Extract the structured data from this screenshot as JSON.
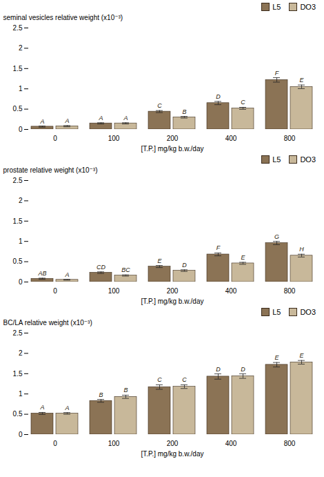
{
  "chart_data": [
    {
      "type": "bar",
      "x_label": "[T.P.] mg/kg b.w./day",
      "y_label": "seminal vesicles relative weight (x10⁻³)",
      "categories": [
        "0",
        "100",
        "200",
        "400",
        "800"
      ],
      "series": [
        {
          "name": "L5",
          "color": "#8b7355",
          "values": [
            0.07,
            0.15,
            0.44,
            0.65,
            1.22
          ],
          "errors": [
            0.015,
            0.015,
            0.025,
            0.04,
            0.055
          ],
          "letters": [
            "A",
            "A",
            "C",
            "D",
            "F"
          ]
        },
        {
          "name": "DO3",
          "color": "#c8b89a",
          "values": [
            0.08,
            0.15,
            0.3,
            0.52,
            1.05
          ],
          "errors": [
            0.015,
            0.015,
            0.02,
            0.025,
            0.045
          ],
          "letters": [
            "A",
            "A",
            "B",
            "C",
            "E"
          ]
        }
      ],
      "ylim": [
        0,
        2.5
      ],
      "yticks": [
        0,
        0.5,
        1,
        1.5,
        2,
        2.5
      ],
      "grid": false,
      "legend": "top-right"
    },
    {
      "type": "bar",
      "x_label": "[T.P.] mg/kg b.w./day",
      "y_label": "prostate relative weight (x10⁻³)",
      "categories": [
        "0",
        "100",
        "200",
        "400",
        "800"
      ],
      "series": [
        {
          "name": "L5",
          "color": "#8b7355",
          "values": [
            0.08,
            0.23,
            0.38,
            0.68,
            0.96
          ],
          "errors": [
            0.015,
            0.02,
            0.025,
            0.035,
            0.04
          ],
          "letters": [
            "AB",
            "CD",
            "E",
            "F",
            "G"
          ]
        },
        {
          "name": "DO3",
          "color": "#c8b89a",
          "values": [
            0.055,
            0.16,
            0.28,
            0.46,
            0.65
          ],
          "errors": [
            0.01,
            0.015,
            0.02,
            0.025,
            0.035
          ],
          "letters": [
            "A",
            "BC",
            "D",
            "E",
            "H"
          ]
        }
      ],
      "ylim": [
        0,
        2.5
      ],
      "yticks": [
        0,
        0.5,
        1,
        1.5,
        2,
        2.5
      ],
      "grid": false,
      "legend": "top-right"
    },
    {
      "type": "bar",
      "x_label": "[T.P.] mg/kg b.w./day",
      "y_label": "BC/LA relative weight (x10⁻³)",
      "categories": [
        "0",
        "100",
        "200",
        "400",
        "800"
      ],
      "series": [
        {
          "name": "L5",
          "color": "#8b7355",
          "values": [
            0.52,
            0.83,
            1.17,
            1.43,
            1.72
          ],
          "errors": [
            0.025,
            0.035,
            0.055,
            0.065,
            0.055
          ],
          "letters": [
            "A",
            "B",
            "C",
            "D",
            "E"
          ]
        },
        {
          "name": "DO3",
          "color": "#c8b89a",
          "values": [
            0.52,
            0.93,
            1.18,
            1.44,
            1.78
          ],
          "errors": [
            0.02,
            0.04,
            0.045,
            0.055,
            0.045
          ],
          "letters": [
            "A",
            "B",
            "C",
            "D",
            "E"
          ]
        }
      ],
      "ylim": [
        0,
        2.5
      ],
      "yticks": [
        0,
        0.5,
        1,
        1.5,
        2,
        2.5
      ],
      "grid": false,
      "legend": "top-right"
    }
  ]
}
